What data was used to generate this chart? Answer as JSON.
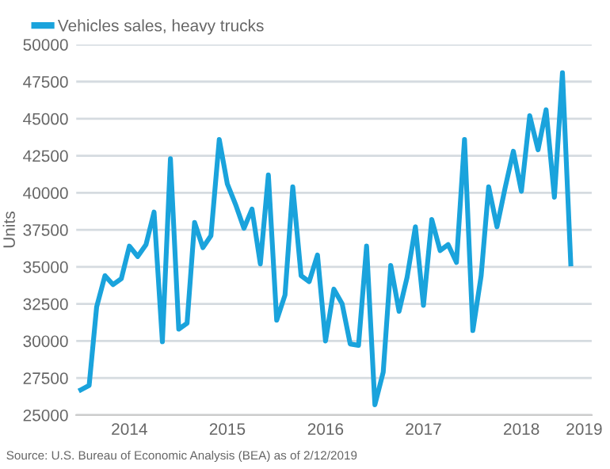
{
  "chart_data": {
    "type": "line",
    "ylabel": "Units",
    "x": [
      "2014-01",
      "2014-02",
      "2014-03",
      "2014-04",
      "2014-05",
      "2014-06",
      "2014-07",
      "2014-08",
      "2014-09",
      "2014-10",
      "2014-11",
      "2014-12",
      "2015-01",
      "2015-02",
      "2015-03",
      "2015-04",
      "2015-05",
      "2015-06",
      "2015-07",
      "2015-08",
      "2015-09",
      "2015-10",
      "2015-11",
      "2015-12",
      "2016-01",
      "2016-02",
      "2016-03",
      "2016-04",
      "2016-05",
      "2016-06",
      "2016-07",
      "2016-08",
      "2016-09",
      "2016-10",
      "2016-11",
      "2016-12",
      "2017-01",
      "2017-02",
      "2017-03",
      "2017-04",
      "2017-05",
      "2017-06",
      "2017-07",
      "2017-08",
      "2017-09",
      "2017-10",
      "2017-11",
      "2017-12",
      "2018-01",
      "2018-02",
      "2018-03",
      "2018-04",
      "2018-05",
      "2018-06",
      "2018-07",
      "2018-08",
      "2018-09",
      "2018-10",
      "2018-11",
      "2018-12",
      "2019-01"
    ],
    "series": [
      {
        "name": "Vehicles sales, heavy trucks",
        "color": "#1aa3dc",
        "values": [
          26700,
          27000,
          32300,
          34400,
          33800,
          34200,
          36400,
          35700,
          36500,
          38700,
          29950,
          42300,
          30800,
          31200,
          38000,
          36300,
          37100,
          43600,
          40600,
          39200,
          37600,
          38900,
          35200,
          41200,
          31400,
          33100,
          40400,
          34400,
          34000,
          35800,
          30000,
          33500,
          32500,
          29800,
          29700,
          36400,
          25700,
          27900,
          35100,
          32000,
          34300,
          37700,
          32400,
          38200,
          36100,
          36500,
          35300,
          43600,
          30700,
          34400,
          40400,
          37700,
          40300,
          42800,
          40100,
          45200,
          42900,
          45600,
          39700,
          48100,
          35200
        ]
      }
    ],
    "xlim": [
      "2013-12-15",
      "2019-03-20"
    ],
    "xticks": [
      {
        "value": "2014-07-01",
        "label": "2014"
      },
      {
        "value": "2015-07-01",
        "label": "2015"
      },
      {
        "value": "2016-07-01",
        "label": "2016"
      },
      {
        "value": "2017-07-01",
        "label": "2017"
      },
      {
        "value": "2018-07-01",
        "label": "2018"
      },
      {
        "value": "2019-02-20",
        "label": "2019"
      }
    ],
    "ylim": [
      25000,
      50000
    ],
    "yticks": [
      25000,
      27500,
      30000,
      32500,
      35000,
      37500,
      40000,
      42500,
      45000,
      47500,
      50000
    ],
    "grid": "y",
    "legend": "top left",
    "line_style": "solid",
    "marker": "none",
    "annotations": [
      "Source: U.S. Bureau of Economic Analysis (BEA) as of 2/12/2019"
    ]
  }
}
